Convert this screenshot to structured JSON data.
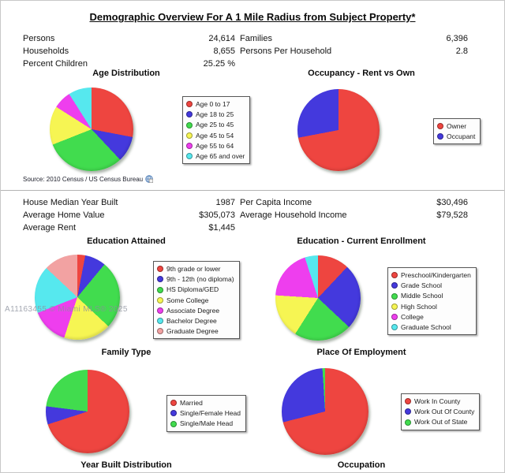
{
  "title": "Demographic Overview For A 1 Mile Radius from Subject Property*",
  "stats_top": {
    "rows": [
      {
        "label_left": "Persons",
        "value_left": "24,614",
        "label_right": "Families",
        "value_right": "6,396"
      },
      {
        "label_left": "Households",
        "value_left": "8,655",
        "label_right": "Persons Per Household",
        "value_right": "2.8"
      },
      {
        "label_left": "Percent Children",
        "value_left": "25.25 %",
        "label_right": "",
        "value_right": ""
      }
    ]
  },
  "source": {
    "label": "Source: 2010 Census / US Census Bureau"
  },
  "stats_mid": {
    "rows": [
      {
        "label_left": "House Median Year Built",
        "value_left": "1987",
        "label_right": "Per Capita Income",
        "value_right": "$30,496"
      },
      {
        "label_left": "Average Home Value",
        "value_left": "$305,073",
        "label_right": "Average Household Income",
        "value_right": "$79,528"
      },
      {
        "label_left": "Average Rent",
        "value_left": "$1,445",
        "label_right": "",
        "value_right": ""
      }
    ]
  },
  "watermark": "A11163455 © Miami MLS® 2025",
  "bottom_titles": {
    "left": "Year Built Distribution",
    "right": "Occupation"
  },
  "chart_data": [
    {
      "type": "pie",
      "title": "Age Distribution",
      "labels": [
        "Age 0 to 17",
        "Age 18 to 25",
        "Age 25 to 45",
        "Age 45 to 54",
        "Age 55 to 64",
        "Age 65 and over"
      ],
      "values": [
        28,
        10,
        31,
        15,
        7,
        9
      ],
      "unit": "percent (estimated from slice angles)",
      "colors": [
        "#ee4540",
        "#4439dd",
        "#41dc4e",
        "#f6f553",
        "#ee3eee",
        "#56e8ee"
      ],
      "legend_position": "right"
    },
    {
      "type": "pie",
      "title": "Occupancy - Rent vs Own",
      "labels": [
        "Owner",
        "Occupant"
      ],
      "values": [
        72,
        28
      ],
      "unit": "percent (estimated from slice angles)",
      "colors": [
        "#ee4540",
        "#4439dd"
      ],
      "legend_position": "right"
    },
    {
      "type": "pie",
      "title": "Education Attained",
      "labels": [
        "9th grade or lower",
        "9th - 12th (no diploma)",
        "HS Diploma/GED",
        "Some College",
        "Associate Degree",
        "Bachelor Degree",
        "Graduate Degree"
      ],
      "values": [
        3,
        8,
        26,
        18,
        14,
        18,
        13
      ],
      "unit": "percent (estimated from slice angles)",
      "colors": [
        "#ee4540",
        "#4439dd",
        "#41dc4e",
        "#f6f553",
        "#ee3eee",
        "#56e8ee",
        "#f2a2a2"
      ],
      "legend_position": "right"
    },
    {
      "type": "pie",
      "title": "Education - Current Enrollment",
      "labels": [
        "Preschool/Kindergarten",
        "Grade School",
        "Middle School",
        "High School",
        "College",
        "Graduate School"
      ],
      "values": [
        12,
        25,
        22,
        17,
        19,
        5
      ],
      "unit": "percent (estimated from slice angles)",
      "colors": [
        "#ee4540",
        "#4439dd",
        "#41dc4e",
        "#f6f553",
        "#ee3eee",
        "#56e8ee"
      ],
      "legend_position": "right"
    },
    {
      "type": "pie",
      "title": "Family Type",
      "labels": [
        "Married",
        "Single/Female Head",
        "Single/Male Head"
      ],
      "values": [
        70,
        7,
        23
      ],
      "unit": "percent (estimated from slice angles)",
      "colors": [
        "#ee4540",
        "#4439dd",
        "#41dc4e"
      ],
      "legend_position": "right"
    },
    {
      "type": "pie",
      "title": "Place Of Employment",
      "labels": [
        "Work In County",
        "Work Out Of County",
        "Work Out of State"
      ],
      "values": [
        71,
        28,
        1
      ],
      "unit": "percent (estimated from slice angles)",
      "colors": [
        "#ee4540",
        "#4439dd",
        "#41dc4e"
      ],
      "legend_position": "right"
    }
  ]
}
